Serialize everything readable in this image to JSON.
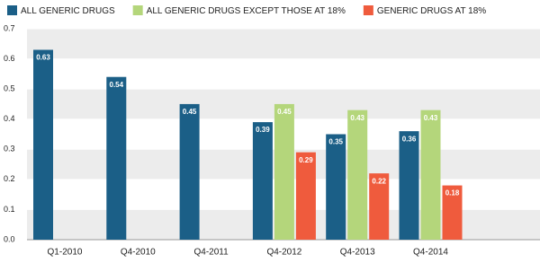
{
  "chart_data": {
    "type": "bar",
    "categories": [
      "Q1-2010",
      "Q4-2010",
      "Q4-2011",
      "Q4-2012",
      "Q4-2013",
      "Q4-2014"
    ],
    "series": [
      {
        "name": "ALL GENERIC DRUGS",
        "color": "#1b5f87",
        "values": [
          0.63,
          0.54,
          0.45,
          0.39,
          0.35,
          0.36
        ]
      },
      {
        "name": "ALL GENERIC DRUGS EXCEPT THOSE AT 18%",
        "color": "#b4d67b",
        "values": [
          null,
          null,
          null,
          0.45,
          0.43,
          0.43
        ]
      },
      {
        "name": "GENERIC DRUGS AT 18%",
        "color": "#ef5b3d",
        "values": [
          null,
          null,
          null,
          0.29,
          0.22,
          0.18
        ]
      }
    ],
    "ylim": [
      0,
      0.7
    ],
    "yticks": [
      {
        "value": 0,
        "label": "0.0"
      },
      0.1,
      0.2,
      0.3,
      0.4,
      0.5,
      0.6,
      0.7
    ],
    "grid": true
  }
}
